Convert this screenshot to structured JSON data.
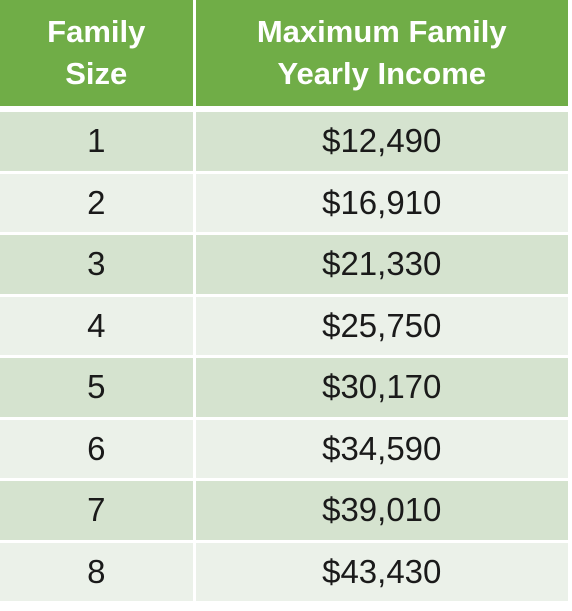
{
  "header": {
    "col1_line1": "Family",
    "col1_line2": "Size",
    "col2_line1": "Maximum Family",
    "col2_line2": "Yearly Income"
  },
  "rows": [
    {
      "size": "1",
      "income": "$12,490"
    },
    {
      "size": "2",
      "income": "$16,910"
    },
    {
      "size": "3",
      "income": "$21,330"
    },
    {
      "size": "4",
      "income": "$25,750"
    },
    {
      "size": "5",
      "income": "$30,170"
    },
    {
      "size": "6",
      "income": "$34,590"
    },
    {
      "size": "7",
      "income": "$39,010"
    },
    {
      "size": "8",
      "income": "$43,430"
    }
  ],
  "colors": {
    "header_bg": "#70ad47",
    "row_dark": "#d5e3cf",
    "row_light": "#ebf1e9"
  }
}
